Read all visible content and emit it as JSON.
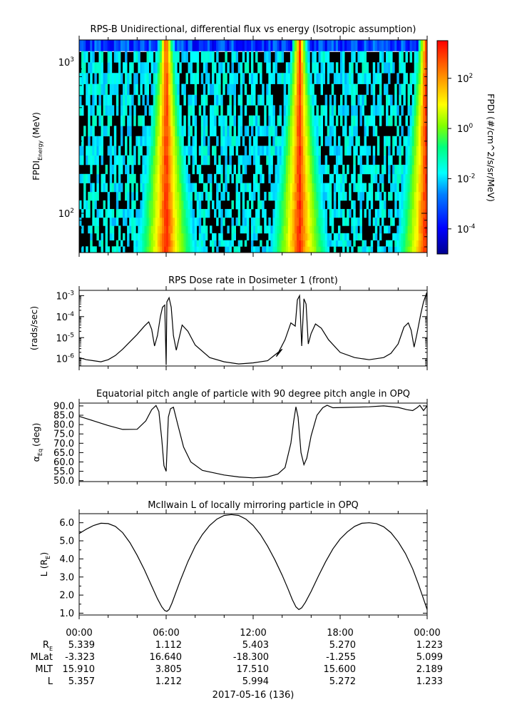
{
  "colors": {
    "trace": "#000000",
    "background": "#ffffff"
  },
  "chart_data": [
    {
      "type": "heatmap",
      "title": "RPS-B  Unidirectional, differential flux vs energy (Isotropic assumption)",
      "ylabel": "FPDI",
      "ylabel_sub": "Energy",
      "ylabel_unit": "(MeV)",
      "yscale": "log",
      "ylim": [
        55,
        1400
      ],
      "y_ticks": [
        {
          "base": "10",
          "exp": "3",
          "value": 1000
        },
        {
          "base": "10",
          "exp": "2",
          "value": 100
        }
      ],
      "energy_channels": [
        58,
        63,
        70,
        78,
        88,
        100,
        114,
        130,
        148,
        170,
        195,
        225,
        260,
        300,
        350,
        410,
        480,
        560,
        660,
        780,
        920,
        1080,
        1300
      ],
      "colorbar": {
        "label": "FPDI (#/cm^2/s/sr/MeV)",
        "scale": "log",
        "zlim": [
          -5,
          3.5
        ],
        "ticks": [
          {
            "base": "10",
            "exp": "2",
            "value": 2
          },
          {
            "base": "10",
            "exp": "0",
            "value": 0
          },
          {
            "base": "10",
            "exp": "-2",
            "value": -2
          },
          {
            "base": "10",
            "exp": "-4",
            "value": -4
          }
        ],
        "colormap": [
          "#00008f",
          "#0000ff",
          "#0080ff",
          "#00ffff",
          "#00ff80",
          "#80ff00",
          "#ffff00",
          "#ff8000",
          "#ff0000"
        ]
      },
      "flux_peaks_hours": [
        6.0,
        15.2,
        23.9
      ],
      "rb_gaps_hours": [
        [
          2.0,
          4.6
        ],
        [
          7.2,
          12.6
        ],
        [
          16.2,
          22.6
        ]
      ]
    },
    {
      "type": "line",
      "title": "RPS  Dose rate in Dosimeter 1 (front)",
      "ylabel": "(rads/sec)",
      "yscale": "log",
      "ylim": [
        -6.35,
        -2.75
      ],
      "y_ticks": [
        {
          "base": "10",
          "exp": "-3",
          "value": -3
        },
        {
          "base": "10",
          "exp": "-4",
          "value": -4
        },
        {
          "base": "10",
          "exp": "-5",
          "value": -5
        },
        {
          "base": "10",
          "exp": "-6",
          "value": -6
        }
      ],
      "x_hours": [
        0,
        0.5,
        1,
        1.5,
        2,
        2.5,
        3,
        3.5,
        4,
        4.5,
        4.8,
        5.0,
        5.2,
        5.4,
        5.6,
        5.75,
        5.9,
        6.0,
        6.05,
        6.2,
        6.35,
        6.5,
        6.7,
        6.9,
        7.1,
        7.5,
        8,
        9,
        10,
        11,
        12,
        13,
        14,
        13.6,
        14.2,
        14.6,
        14.9,
        15.05,
        15.2,
        15.35,
        15.5,
        15.65,
        15.8,
        16.0,
        16.3,
        16.7,
        17.2,
        18,
        19,
        20,
        21,
        21.5,
        22,
        22.4,
        22.7,
        22.9,
        23.1,
        23.3,
        23.55,
        23.75,
        23.95,
        24
      ],
      "y_log10": [
        -5.95,
        -6.05,
        -6.1,
        -6.15,
        -6.05,
        -5.85,
        -5.55,
        -5.2,
        -4.85,
        -4.45,
        -4.25,
        -4.6,
        -5.4,
        -4.9,
        -4.0,
        -3.55,
        -3.45,
        -6.3,
        -3.3,
        -3.1,
        -3.55,
        -4.9,
        -5.6,
        -5.0,
        -4.4,
        -4.7,
        -5.35,
        -5.95,
        -6.15,
        -6.25,
        -6.2,
        -6.1,
        -5.55,
        -5.9,
        -5.1,
        -4.3,
        -4.45,
        -3.2,
        -3.0,
        -5.4,
        -3.15,
        -3.4,
        -5.3,
        -4.8,
        -4.35,
        -4.55,
        -5.1,
        -5.7,
        -5.95,
        -6.05,
        -5.95,
        -5.75,
        -5.3,
        -4.5,
        -4.3,
        -4.65,
        -5.45,
        -4.8,
        -3.9,
        -3.3,
        -2.9,
        -3.05
      ]
    },
    {
      "type": "line",
      "title": "Equatorial pitch angle of particle with 90 degree pitch angle in OPQ",
      "ylabel": "α",
      "ylabel_sub": "Eq",
      "ylabel_unit": "(deg)",
      "ylim": [
        49.5,
        91.5
      ],
      "y_ticks": [
        90,
        85,
        80,
        75,
        70,
        65,
        60,
        55,
        50
      ],
      "x_hours": [
        0,
        1,
        2,
        3,
        4,
        4.6,
        5.0,
        5.3,
        5.5,
        5.7,
        5.85,
        6.0,
        6.15,
        6.3,
        6.5,
        6.8,
        7.2,
        7.7,
        8.5,
        10,
        11,
        12,
        13,
        13.7,
        14.2,
        14.6,
        14.8,
        14.95,
        15.1,
        15.3,
        15.5,
        15.7,
        16.0,
        16.4,
        16.8,
        17.1,
        17.5,
        18.5,
        20,
        21,
        22,
        22.6,
        23.0,
        23.3,
        23.5,
        23.75,
        24
      ],
      "values": [
        84.4,
        82,
        79.5,
        77.4,
        77.5,
        82,
        88,
        90.2,
        87,
        72,
        58,
        55,
        84,
        88.5,
        89.3,
        80,
        68,
        60,
        55.5,
        53,
        52,
        51.5,
        52,
        53.5,
        57,
        70,
        82,
        89.5,
        84,
        65,
        58.5,
        62,
        74,
        85,
        89,
        90.3,
        89,
        89.2,
        89.5,
        90,
        89.2,
        88,
        87.5,
        89,
        90.3,
        87.5,
        90
      ]
    },
    {
      "type": "line",
      "title": "McIlwain L of locally mirroring particle in OPQ",
      "ylabel": "L (R",
      "ylabel_sub": "E",
      "ylabel_close": ")",
      "ylim": [
        0.9,
        6.5
      ],
      "y_ticks": [
        6,
        5,
        4,
        3,
        2,
        1
      ],
      "x_hours": [
        0,
        0.5,
        1,
        1.5,
        2,
        2.5,
        3,
        3.5,
        4,
        4.5,
        5,
        5.4,
        5.7,
        5.9,
        6.05,
        6.2,
        6.4,
        6.7,
        7,
        7.5,
        8,
        8.5,
        9,
        9.5,
        10,
        10.5,
        11,
        11.5,
        12,
        12.5,
        13,
        13.5,
        14,
        14.4,
        14.7,
        14.95,
        15.15,
        15.35,
        15.6,
        16,
        16.5,
        17,
        17.5,
        18,
        18.5,
        19,
        19.5,
        20,
        20.5,
        21,
        21.5,
        22,
        22.5,
        23,
        23.4,
        23.7,
        24
      ],
      "values": [
        5.4,
        5.65,
        5.85,
        5.97,
        5.95,
        5.8,
        5.45,
        4.9,
        4.2,
        3.4,
        2.5,
        1.8,
        1.35,
        1.15,
        1.1,
        1.2,
        1.55,
        2.2,
        2.85,
        3.85,
        4.7,
        5.35,
        5.85,
        6.2,
        6.4,
        6.45,
        6.4,
        6.2,
        5.85,
        5.35,
        4.7,
        3.95,
        3.1,
        2.35,
        1.75,
        1.35,
        1.2,
        1.3,
        1.6,
        2.2,
        3.05,
        3.85,
        4.55,
        5.1,
        5.5,
        5.8,
        5.97,
        6.0,
        5.95,
        5.78,
        5.45,
        4.95,
        4.3,
        3.45,
        2.6,
        1.9,
        1.2
      ]
    }
  ],
  "x_axis": {
    "tick_labels": [
      "00:00",
      "06:00",
      "12:00",
      "18:00",
      "00:00"
    ],
    "ephemeris": [
      {
        "name": "R",
        "sub": "E",
        "values": [
          "5.339",
          "1.112",
          "5.403",
          "5.270",
          "1.223"
        ]
      },
      {
        "name": "MLat",
        "sub": "",
        "values": [
          "-3.323",
          "16.640",
          "-18.300",
          "-1.255",
          "5.099"
        ]
      },
      {
        "name": "MLT",
        "sub": "",
        "values": [
          "15.910",
          "3.805",
          "17.510",
          "15.600",
          "2.189"
        ]
      },
      {
        "name": "L",
        "sub": "",
        "values": [
          "5.357",
          "1.212",
          "5.994",
          "5.272",
          "1.233"
        ]
      }
    ],
    "date_label": "2017-05-16 (136)"
  }
}
